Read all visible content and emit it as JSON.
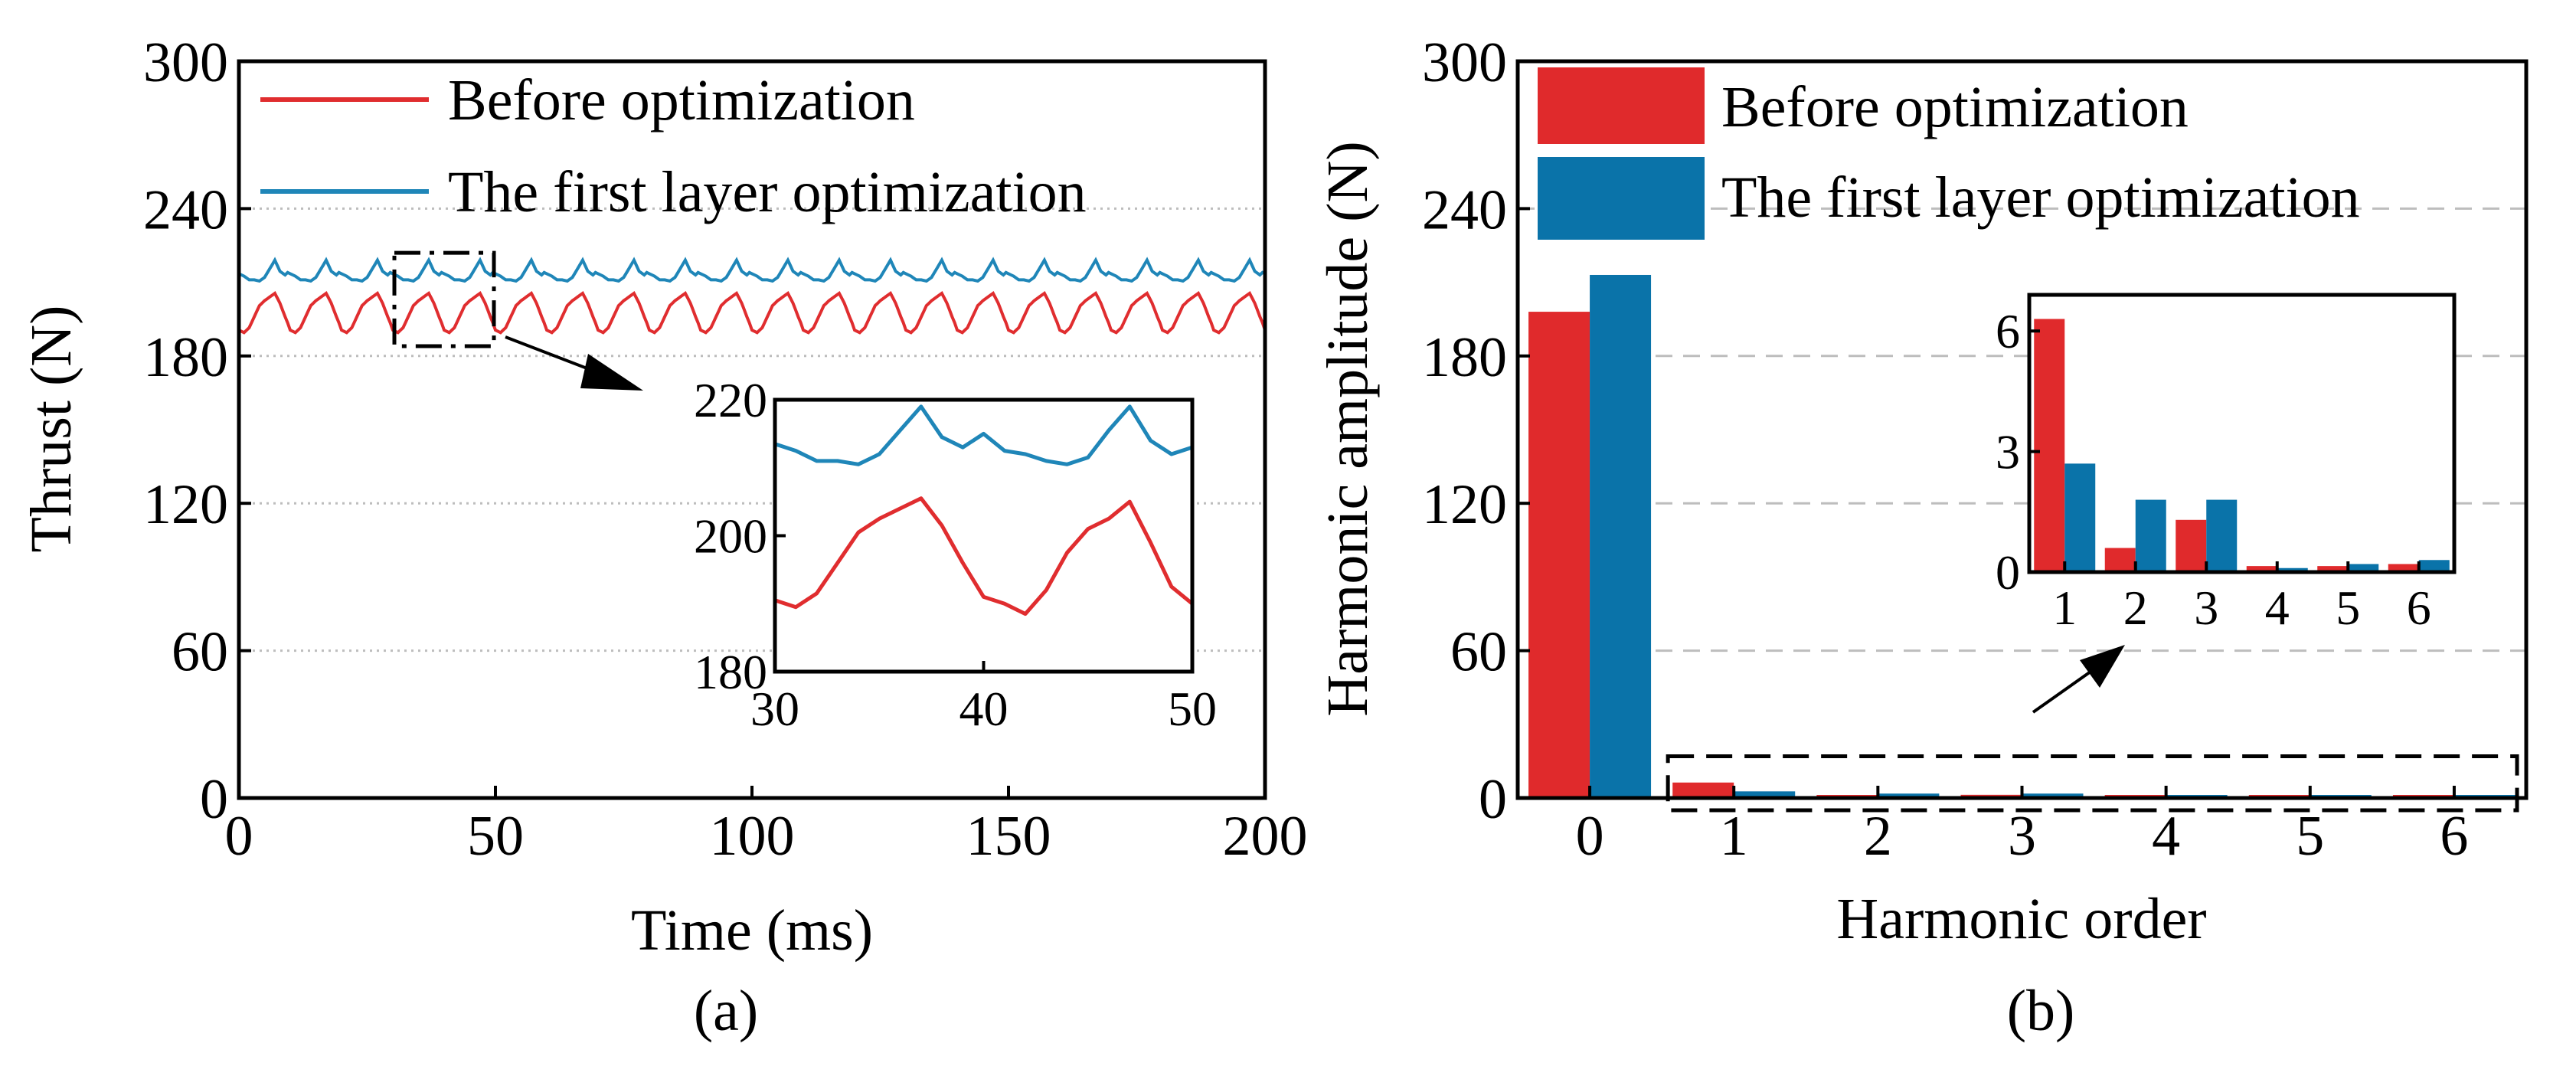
{
  "colors": {
    "before": "#e02d2f",
    "first_layer": "#1f86b8",
    "bar_before": "#e02a2c",
    "bar_first_layer": "#0a73a9",
    "grid": "#bdbdbd"
  },
  "panel_a": {
    "caption": "(a)",
    "legend": [
      "Before optimization",
      "The first layer optimization"
    ]
  },
  "panel_b": {
    "caption": "(b)",
    "legend": [
      "Before optimization",
      "The first layer optimization"
    ]
  },
  "chart_data": [
    {
      "type": "line",
      "id": "a-main",
      "title": "",
      "xlabel": "Time (ms)",
      "ylabel": "Thrust (N)",
      "xlim": [
        0,
        200
      ],
      "ylim": [
        0,
        300
      ],
      "xticks": [
        "0",
        "50",
        "100",
        "150",
        "200"
      ],
      "yticks": [
        "0",
        "60",
        "120",
        "180",
        "240",
        "300"
      ],
      "grid": "horizontal dotted",
      "ripple_period_ms": 10,
      "series": [
        {
          "name": "Before optimization",
          "mean": 196,
          "min": 187.5,
          "max": 205
        },
        {
          "name": "The first layer optimization",
          "mean": 213,
          "min": 208.5,
          "max": 219.5
        }
      ],
      "annotation": {
        "type": "dash-dot box",
        "x_range": [
          30,
          50
        ],
        "y_range": [
          184,
          222
        ]
      }
    },
    {
      "type": "line",
      "id": "a-inset",
      "xlim": [
        30,
        50
      ],
      "ylim": [
        180,
        220
      ],
      "xticks": [
        "30",
        "40",
        "50"
      ],
      "yticks": [
        "180",
        "200",
        "220"
      ],
      "series": [
        {
          "name": "Before optimization",
          "x": [
            30,
            31,
            32,
            33,
            34,
            35,
            36,
            37,
            38,
            39,
            40,
            41,
            42,
            43,
            44,
            45,
            46,
            47,
            48,
            49,
            50
          ],
          "y": [
            190.5,
            189.5,
            191.5,
            196,
            200.5,
            202.5,
            204,
            205.5,
            201.5,
            196,
            191,
            190,
            188.5,
            192,
            197.5,
            201,
            202.5,
            205,
            199,
            192.5,
            190
          ]
        },
        {
          "name": "The first layer optimization",
          "x": [
            30,
            31,
            32,
            33,
            34,
            35,
            36,
            37,
            38,
            39,
            40,
            41,
            42,
            43,
            44,
            45,
            46,
            47,
            48,
            49,
            50
          ],
          "y": [
            213.5,
            212.5,
            211,
            211,
            210.5,
            212,
            215.5,
            219,
            214.5,
            213,
            215,
            212.5,
            212,
            211,
            210.5,
            211.5,
            215.5,
            219,
            214,
            212,
            213
          ]
        }
      ]
    },
    {
      "type": "bar",
      "id": "b-main",
      "title": "",
      "xlabel": "Harmonic order",
      "ylabel": "Harmonic amplitude (N)",
      "categories": [
        "0",
        "1",
        "2",
        "3",
        "4",
        "5",
        "6"
      ],
      "ylim": [
        0,
        300
      ],
      "yticks": [
        "0",
        "60",
        "120",
        "180",
        "240",
        "300"
      ],
      "grid": "horizontal dashed",
      "series": [
        {
          "name": "Before optimization",
          "values": [
            198,
            6.3,
            0.6,
            1.3,
            0.15,
            0.15,
            0.2
          ]
        },
        {
          "name": "The first layer optimization",
          "values": [
            213,
            2.7,
            1.8,
            1.8,
            0.1,
            0.2,
            0.3
          ]
        }
      ],
      "annotation": {
        "type": "dashed box",
        "categories": [
          "1",
          "6"
        ],
        "y_range": [
          -5,
          17
        ]
      }
    },
    {
      "type": "bar",
      "id": "b-inset",
      "categories": [
        "1",
        "2",
        "3",
        "4",
        "5",
        "6"
      ],
      "ylim": [
        0,
        6.9
      ],
      "yticks": [
        "0",
        "3",
        "6"
      ],
      "series": [
        {
          "name": "Before optimization",
          "values": [
            6.3,
            0.6,
            1.3,
            0.15,
            0.15,
            0.2
          ]
        },
        {
          "name": "The first layer optimization",
          "values": [
            2.7,
            1.8,
            1.8,
            0.1,
            0.2,
            0.3
          ]
        }
      ]
    }
  ]
}
